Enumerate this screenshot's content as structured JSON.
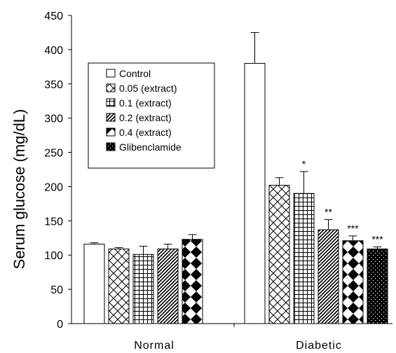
{
  "chart_data": {
    "type": "bar",
    "title": "",
    "xlabel": "",
    "ylabel": "Serum glucose  (mg/dL)",
    "ylim": [
      0,
      450
    ],
    "yticks": [
      "0",
      "50",
      "100",
      "150",
      "200",
      "250",
      "300",
      "350",
      "400",
      "450"
    ],
    "categories": [
      "Normal",
      "Diabetic"
    ],
    "legend_position": "top-left",
    "grid": false,
    "series": [
      {
        "name": "Control",
        "pattern": "plain",
        "values": [
          116,
          380
        ],
        "errors": [
          2,
          45
        ],
        "significance": [
          "",
          ""
        ]
      },
      {
        "name": "0.05 (extract)",
        "pattern": "diamond-lattice",
        "values": [
          109,
          202
        ],
        "errors": [
          2,
          11
        ],
        "significance": [
          "",
          ""
        ]
      },
      {
        "name": "0.1 (extract)",
        "pattern": "square-grid",
        "values": [
          101,
          190
        ],
        "errors": [
          12,
          32
        ],
        "significance": [
          "",
          "*"
        ]
      },
      {
        "name": "0.2 (extract)",
        "pattern": "diagonal",
        "values": [
          109,
          137
        ],
        "errors": [
          7,
          15
        ],
        "significance": [
          "",
          "**"
        ]
      },
      {
        "name": "0.4 (extract)",
        "pattern": "checker-diamond",
        "values": [
          123,
          121
        ],
        "errors": [
          7,
          7
        ],
        "significance": [
          "",
          "***"
        ]
      },
      {
        "name": "Glibenclamide",
        "pattern": "dots",
        "values": [
          null,
          109
        ],
        "errors": [
          null,
          3
        ],
        "significance": [
          "",
          "***"
        ]
      }
    ]
  }
}
